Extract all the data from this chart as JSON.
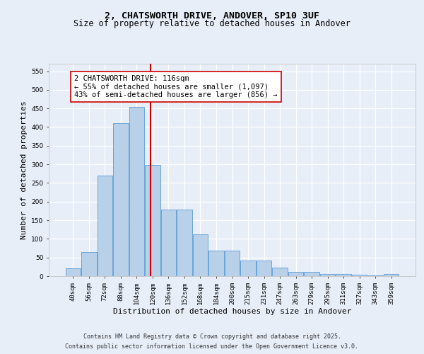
{
  "title_line1": "2, CHATSWORTH DRIVE, ANDOVER, SP10 3UF",
  "title_line2": "Size of property relative to detached houses in Andover",
  "xlabel": "Distribution of detached houses by size in Andover",
  "ylabel": "Number of detached properties",
  "bar_labels": [
    "40sqm",
    "56sqm",
    "72sqm",
    "88sqm",
    "104sqm",
    "120sqm",
    "136sqm",
    "152sqm",
    "168sqm",
    "184sqm",
    "200sqm",
    "215sqm",
    "231sqm",
    "247sqm",
    "263sqm",
    "279sqm",
    "295sqm",
    "311sqm",
    "327sqm",
    "343sqm",
    "359sqm"
  ],
  "bar_values": [
    20,
    65,
    270,
    410,
    455,
    298,
    178,
    178,
    113,
    68,
    68,
    42,
    42,
    22,
    12,
    12,
    6,
    5,
    3,
    2,
    5
  ],
  "bar_color": "#b8d0e8",
  "bar_edge_color": "#5b9bd5",
  "vline_color": "#cc0000",
  "annotation_text": "2 CHATSWORTH DRIVE: 116sqm\n← 55% of detached houses are smaller (1,097)\n43% of semi-detached houses are larger (856) →",
  "annotation_box_color": "#ffffff",
  "annotation_box_edge": "#cc0000",
  "ylim": [
    0,
    570
  ],
  "yticks": [
    0,
    50,
    100,
    150,
    200,
    250,
    300,
    350,
    400,
    450,
    500,
    550
  ],
  "background_color": "#e8eef8",
  "plot_bg_color": "#e8eef8",
  "grid_color": "#ffffff",
  "footer_line1": "Contains HM Land Registry data © Crown copyright and database right 2025.",
  "footer_line2": "Contains public sector information licensed under the Open Government Licence v3.0.",
  "title_fontsize": 9.5,
  "subtitle_fontsize": 8.5,
  "tick_fontsize": 6.5,
  "ylabel_fontsize": 8,
  "xlabel_fontsize": 8,
  "annotation_fontsize": 7.5,
  "footer_fontsize": 6
}
